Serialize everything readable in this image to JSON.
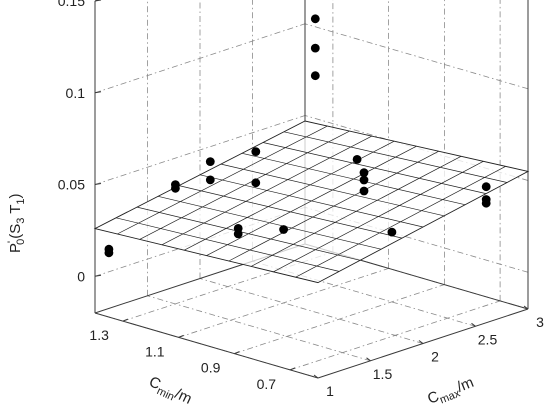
{
  "chart_data": {
    "type": "scatter",
    "x_label": {
      "main": "C",
      "sub": "max",
      "tail": "/m"
    },
    "y_label": {
      "main": "C",
      "sub": "min",
      "tail": "/m"
    },
    "z_label": {
      "main": "P",
      "prime": "'",
      "sub": "0",
      "tail_open": "(S",
      "sub2": "3",
      "mid": " T",
      "sub3": "1",
      "tail_close": ")"
    },
    "x_ticks": [
      "1",
      "1.5",
      "2",
      "2.5",
      "3"
    ],
    "y_ticks": [
      "0.7",
      "0.9",
      "1.1",
      "1.3"
    ],
    "z_ticks": [
      "0",
      "0.05",
      "0.1",
      "0.15"
    ],
    "xlim": [
      1,
      3
    ],
    "ylim": [
      0.6,
      1.4
    ],
    "zlim": [
      -0.02,
      0.15
    ],
    "fit_surface": {
      "z_at_xmin_ymax": 0.026,
      "z_at_xmin_ymin": 0.032,
      "z_at_xmax_ymax": 0.047,
      "z_at_xmax_ymin": 0.055
    },
    "points": [
      {
        "x": 1.0,
        "y": 1.35,
        "z": 0.017
      },
      {
        "x": 1.0,
        "y": 1.35,
        "z": 0.015
      },
      {
        "x": 1.5,
        "y": 1.3,
        "z": 0.045
      },
      {
        "x": 1.5,
        "y": 1.3,
        "z": 0.043
      },
      {
        "x": 1.7,
        "y": 1.25,
        "z": 0.056
      },
      {
        "x": 1.7,
        "y": 1.25,
        "z": 0.046
      },
      {
        "x": 1.7,
        "y": 1.15,
        "z": 0.024
      },
      {
        "x": 1.7,
        "y": 1.15,
        "z": 0.021
      },
      {
        "x": 2.0,
        "y": 1.2,
        "z": 0.058
      },
      {
        "x": 2.0,
        "y": 1.2,
        "z": 0.041
      },
      {
        "x": 2.0,
        "y": 1.1,
        "z": 0.02
      },
      {
        "x": 2.5,
        "y": 1.0,
        "z": 0.046
      },
      {
        "x": 2.5,
        "y": 1.0,
        "z": 0.042
      },
      {
        "x": 2.5,
        "y": 1.0,
        "z": 0.036
      },
      {
        "x": 2.5,
        "y": 0.9,
        "z": 0.018
      },
      {
        "x": 2.7,
        "y": 1.1,
        "z": 0.045
      },
      {
        "x": 2.7,
        "y": 1.25,
        "z": 0.115
      },
      {
        "x": 2.7,
        "y": 1.25,
        "z": 0.099
      },
      {
        "x": 2.7,
        "y": 1.25,
        "z": 0.084
      },
      {
        "x": 3.0,
        "y": 0.75,
        "z": 0.04
      },
      {
        "x": 3.0,
        "y": 0.75,
        "z": 0.033
      },
      {
        "x": 3.0,
        "y": 0.75,
        "z": 0.031
      }
    ]
  }
}
